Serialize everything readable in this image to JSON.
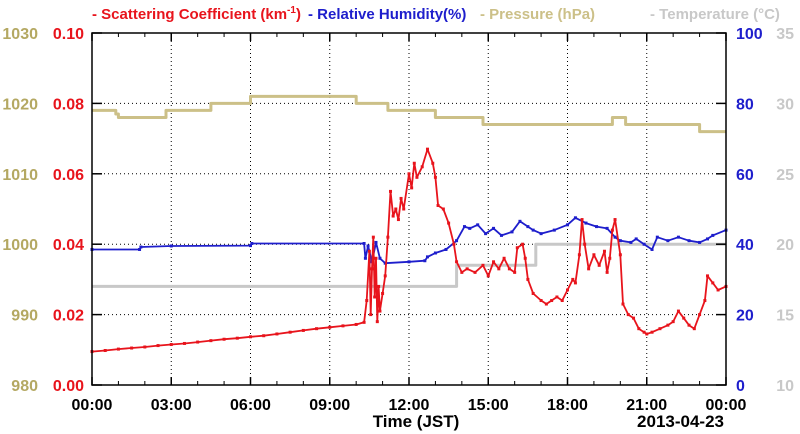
{
  "chart_data": {
    "type": "line",
    "legend": [
      {
        "series": "scattering",
        "marker": "-",
        "text": "Scattering Coefficient (km",
        "sup": "-1",
        "tail": ")",
        "color": "#e8141c"
      },
      {
        "series": "humidity",
        "marker": "-",
        "text": "Relative Humidity(%)",
        "color": "#1e1ecc"
      },
      {
        "series": "pressure",
        "marker": "-",
        "text": "Pressure (hPa)",
        "color": "#ccc088"
      },
      {
        "series": "temperature",
        "marker": "-",
        "text": "Temperature (°C)",
        "color": "#c8c8c8"
      }
    ],
    "xlabel": "Time (JST)",
    "date_label": "2013-04-23",
    "x_ticks": [
      "00:00",
      "03:00",
      "06:00",
      "09:00",
      "12:00",
      "15:00",
      "18:00",
      "21:00",
      "00:00"
    ],
    "xlim_hours": [
      0,
      24
    ],
    "axes": {
      "pressure": {
        "side": "left-outer",
        "color": "#b4a862",
        "ylim": [
          980,
          1030
        ],
        "ticks": [
          "980",
          "990",
          "1000",
          "1010",
          "1020",
          "1030"
        ]
      },
      "scattering": {
        "side": "left-inner",
        "color": "#e8141c",
        "ylim": [
          0,
          0.1
        ],
        "ticks": [
          "0.00",
          "0.02",
          "0.04",
          "0.06",
          "0.08",
          "0.10"
        ]
      },
      "humidity": {
        "side": "right-inner",
        "color": "#1e1ecc",
        "ylim": [
          0,
          100
        ],
        "ticks": [
          "0",
          "20",
          "40",
          "60",
          "80",
          "100"
        ]
      },
      "temperature": {
        "side": "right-outer",
        "color": "#c8c8c8",
        "ylim": [
          10,
          35
        ],
        "ticks": [
          "10",
          "15",
          "20",
          "25",
          "30",
          "35"
        ]
      }
    },
    "grid": true,
    "series": [
      {
        "key": "scattering",
        "axis": "scattering",
        "color": "#e8141c",
        "markers": true,
        "points": [
          [
            0,
            0.0095
          ],
          [
            0.5,
            0.0098
          ],
          [
            1,
            0.0102
          ],
          [
            1.5,
            0.0105
          ],
          [
            2,
            0.0108
          ],
          [
            2.5,
            0.0112
          ],
          [
            3,
            0.0115
          ],
          [
            3.5,
            0.0118
          ],
          [
            4,
            0.0122
          ],
          [
            4.5,
            0.0126
          ],
          [
            5,
            0.013
          ],
          [
            5.5,
            0.0133
          ],
          [
            6,
            0.0137
          ],
          [
            6.5,
            0.014
          ],
          [
            7,
            0.0145
          ],
          [
            7.5,
            0.015
          ],
          [
            8,
            0.0155
          ],
          [
            8.5,
            0.016
          ],
          [
            9,
            0.0164
          ],
          [
            9.5,
            0.0168
          ],
          [
            10,
            0.0172
          ],
          [
            10.3,
            0.0178
          ],
          [
            10.4,
            0.024
          ],
          [
            10.5,
            0.038
          ],
          [
            10.55,
            0.02
          ],
          [
            10.6,
            0.033
          ],
          [
            10.65,
            0.042
          ],
          [
            10.7,
            0.025
          ],
          [
            10.75,
            0.036
          ],
          [
            10.8,
            0.018
          ],
          [
            10.85,
            0.028
          ],
          [
            10.9,
            0.021
          ],
          [
            11,
            0.026
          ],
          [
            11.1,
            0.031
          ],
          [
            11.2,
            0.042
          ],
          [
            11.3,
            0.055
          ],
          [
            11.4,
            0.048
          ],
          [
            11.5,
            0.05
          ],
          [
            11.6,
            0.047
          ],
          [
            11.7,
            0.053
          ],
          [
            11.8,
            0.05
          ],
          [
            12,
            0.06
          ],
          [
            12.1,
            0.056
          ],
          [
            12.2,
            0.063
          ],
          [
            12.3,
            0.059
          ],
          [
            12.5,
            0.062
          ],
          [
            12.7,
            0.067
          ],
          [
            12.9,
            0.063
          ],
          [
            13.0,
            0.059
          ],
          [
            13.1,
            0.051
          ],
          [
            13.3,
            0.05
          ],
          [
            13.5,
            0.046
          ],
          [
            13.7,
            0.04
          ],
          [
            13.8,
            0.035
          ],
          [
            14,
            0.032
          ],
          [
            14.2,
            0.033
          ],
          [
            14.5,
            0.032
          ],
          [
            14.8,
            0.034
          ],
          [
            15,
            0.031
          ],
          [
            15.2,
            0.035
          ],
          [
            15.4,
            0.033
          ],
          [
            15.6,
            0.036
          ],
          [
            15.8,
            0.033
          ],
          [
            16,
            0.032
          ],
          [
            16.1,
            0.039
          ],
          [
            16.3,
            0.04
          ],
          [
            16.4,
            0.036
          ],
          [
            16.5,
            0.03
          ],
          [
            16.7,
            0.026
          ],
          [
            17,
            0.024
          ],
          [
            17.2,
            0.023
          ],
          [
            17.4,
            0.024
          ],
          [
            17.6,
            0.025
          ],
          [
            17.8,
            0.024
          ],
          [
            18,
            0.027
          ],
          [
            18.2,
            0.03
          ],
          [
            18.3,
            0.029
          ],
          [
            18.45,
            0.037
          ],
          [
            18.55,
            0.047
          ],
          [
            18.65,
            0.04
          ],
          [
            18.8,
            0.033
          ],
          [
            19,
            0.037
          ],
          [
            19.2,
            0.034
          ],
          [
            19.4,
            0.038
          ],
          [
            19.5,
            0.032
          ],
          [
            19.6,
            0.036
          ],
          [
            19.7,
            0.044
          ],
          [
            19.8,
            0.047
          ],
          [
            20,
            0.037
          ],
          [
            20.1,
            0.023
          ],
          [
            20.3,
            0.02
          ],
          [
            20.5,
            0.019
          ],
          [
            20.7,
            0.016
          ],
          [
            20.9,
            0.015
          ],
          [
            21,
            0.0145
          ],
          [
            21.2,
            0.015
          ],
          [
            21.5,
            0.016
          ],
          [
            21.8,
            0.017
          ],
          [
            22,
            0.018
          ],
          [
            22.2,
            0.021
          ],
          [
            22.4,
            0.019
          ],
          [
            22.6,
            0.017
          ],
          [
            22.8,
            0.016
          ],
          [
            23,
            0.02
          ],
          [
            23.2,
            0.024
          ],
          [
            23.3,
            0.031
          ],
          [
            23.5,
            0.029
          ],
          [
            23.7,
            0.027
          ],
          [
            24,
            0.028
          ]
        ]
      },
      {
        "key": "humidity",
        "axis": "humidity",
        "color": "#1e1ecc",
        "markers": true,
        "points": [
          [
            0,
            38.5
          ],
          [
            1.8,
            38.5
          ],
          [
            1.85,
            39.2
          ],
          [
            3,
            39.5
          ],
          [
            6,
            39.6
          ],
          [
            6.05,
            40.2
          ],
          [
            10.3,
            40.2
          ],
          [
            10.35,
            36
          ],
          [
            10.45,
            39.5
          ],
          [
            10.6,
            35
          ],
          [
            10.75,
            40.5
          ],
          [
            10.9,
            36
          ],
          [
            11.1,
            34.6
          ],
          [
            12,
            35
          ],
          [
            12.6,
            35.3
          ],
          [
            12.7,
            36.4
          ],
          [
            13,
            37.5
          ],
          [
            13.4,
            38.5
          ],
          [
            13.8,
            41
          ],
          [
            14.1,
            45
          ],
          [
            14.3,
            44.5
          ],
          [
            14.6,
            45.5
          ],
          [
            14.9,
            43
          ],
          [
            15.2,
            44.5
          ],
          [
            15.5,
            42.5
          ],
          [
            15.9,
            43.5
          ],
          [
            16.2,
            46.5
          ],
          [
            16.5,
            45
          ],
          [
            16.7,
            44
          ],
          [
            17,
            43
          ],
          [
            17.5,
            44
          ],
          [
            18,
            45.5
          ],
          [
            18.3,
            47.5
          ],
          [
            18.7,
            46
          ],
          [
            19.1,
            45
          ],
          [
            19.5,
            44.5
          ],
          [
            19.8,
            42
          ],
          [
            20,
            41
          ],
          [
            20.4,
            40.5
          ],
          [
            20.6,
            41.5
          ],
          [
            20.9,
            40
          ],
          [
            21.2,
            38.5
          ],
          [
            21.4,
            42
          ],
          [
            21.8,
            41
          ],
          [
            22.2,
            42
          ],
          [
            22.6,
            41
          ],
          [
            23.0,
            40.5
          ],
          [
            23.3,
            41.5
          ],
          [
            23.5,
            42.5
          ],
          [
            24,
            44
          ]
        ]
      },
      {
        "key": "pressure",
        "axis": "pressure",
        "color": "#ccc088",
        "markers": false,
        "points": [
          [
            0,
            1019
          ],
          [
            0.9,
            1019
          ],
          [
            0.9,
            1018.5
          ],
          [
            1.0,
            1018.5
          ],
          [
            1.0,
            1018
          ],
          [
            2.1,
            1018
          ],
          [
            2.1,
            1018
          ],
          [
            2.8,
            1018
          ],
          [
            2.8,
            1019
          ],
          [
            4.5,
            1019
          ],
          [
            4.5,
            1020
          ],
          [
            6.0,
            1020
          ],
          [
            6.0,
            1021
          ],
          [
            9.0,
            1021
          ],
          [
            9.0,
            1021
          ],
          [
            10.0,
            1021
          ],
          [
            10.0,
            1020
          ],
          [
            11.2,
            1020
          ],
          [
            11.2,
            1019
          ],
          [
            13.0,
            1019
          ],
          [
            13.0,
            1018
          ],
          [
            14.8,
            1018
          ],
          [
            14.8,
            1017
          ],
          [
            19.7,
            1017
          ],
          [
            19.7,
            1018
          ],
          [
            20.2,
            1018
          ],
          [
            20.2,
            1017
          ],
          [
            23.0,
            1017
          ],
          [
            23.0,
            1016
          ],
          [
            24,
            1016
          ]
        ]
      },
      {
        "key": "temperature",
        "axis": "temperature",
        "color": "#c8c8c8",
        "markers": false,
        "points": [
          [
            0,
            17
          ],
          [
            13.8,
            17
          ],
          [
            13.8,
            18.5
          ],
          [
            16.8,
            18.5
          ],
          [
            16.8,
            20
          ],
          [
            24,
            20
          ]
        ]
      }
    ]
  }
}
